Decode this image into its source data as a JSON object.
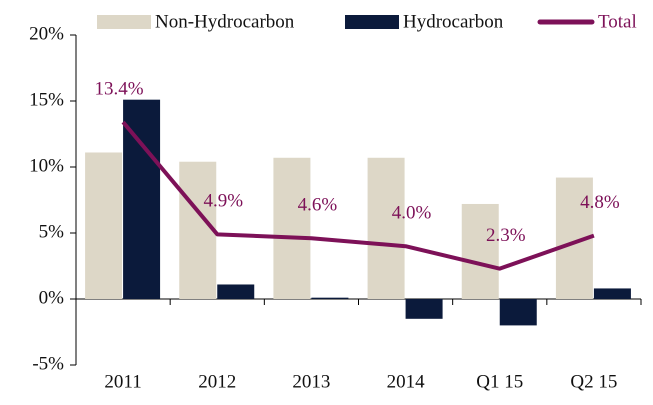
{
  "chart_data": {
    "type": "bar-line",
    "categories": [
      "2011",
      "2012",
      "2013",
      "2014",
      "Q1 15",
      "Q2 15"
    ],
    "series": [
      {
        "name": "Non-Hydrocarbon",
        "type": "bar",
        "color": "#ddd7c7",
        "values": [
          11.1,
          10.4,
          10.7,
          10.7,
          7.2,
          9.2
        ]
      },
      {
        "name": "Hydrocarbon",
        "type": "bar",
        "color": "#0b1a3b",
        "values": [
          15.1,
          1.1,
          0.1,
          -1.5,
          -2.0,
          0.8
        ]
      },
      {
        "name": "Total",
        "type": "line",
        "color": "#7d1158",
        "values": [
          13.4,
          4.9,
          4.6,
          4.0,
          2.3,
          4.8
        ],
        "value_labels": [
          "13.4%",
          "4.9%",
          "4.6%",
          "4.0%",
          "2.3%",
          "4.8%"
        ]
      }
    ],
    "ylim": [
      -5,
      20
    ],
    "yticks": [
      {
        "value": -5,
        "label": "-5%"
      },
      {
        "value": 0,
        "label": "0%"
      },
      {
        "value": 5,
        "label": "5%"
      },
      {
        "value": 10,
        "label": "10%"
      },
      {
        "value": 15,
        "label": "15%"
      },
      {
        "value": 20,
        "label": "20%"
      }
    ],
    "legend": "top"
  }
}
